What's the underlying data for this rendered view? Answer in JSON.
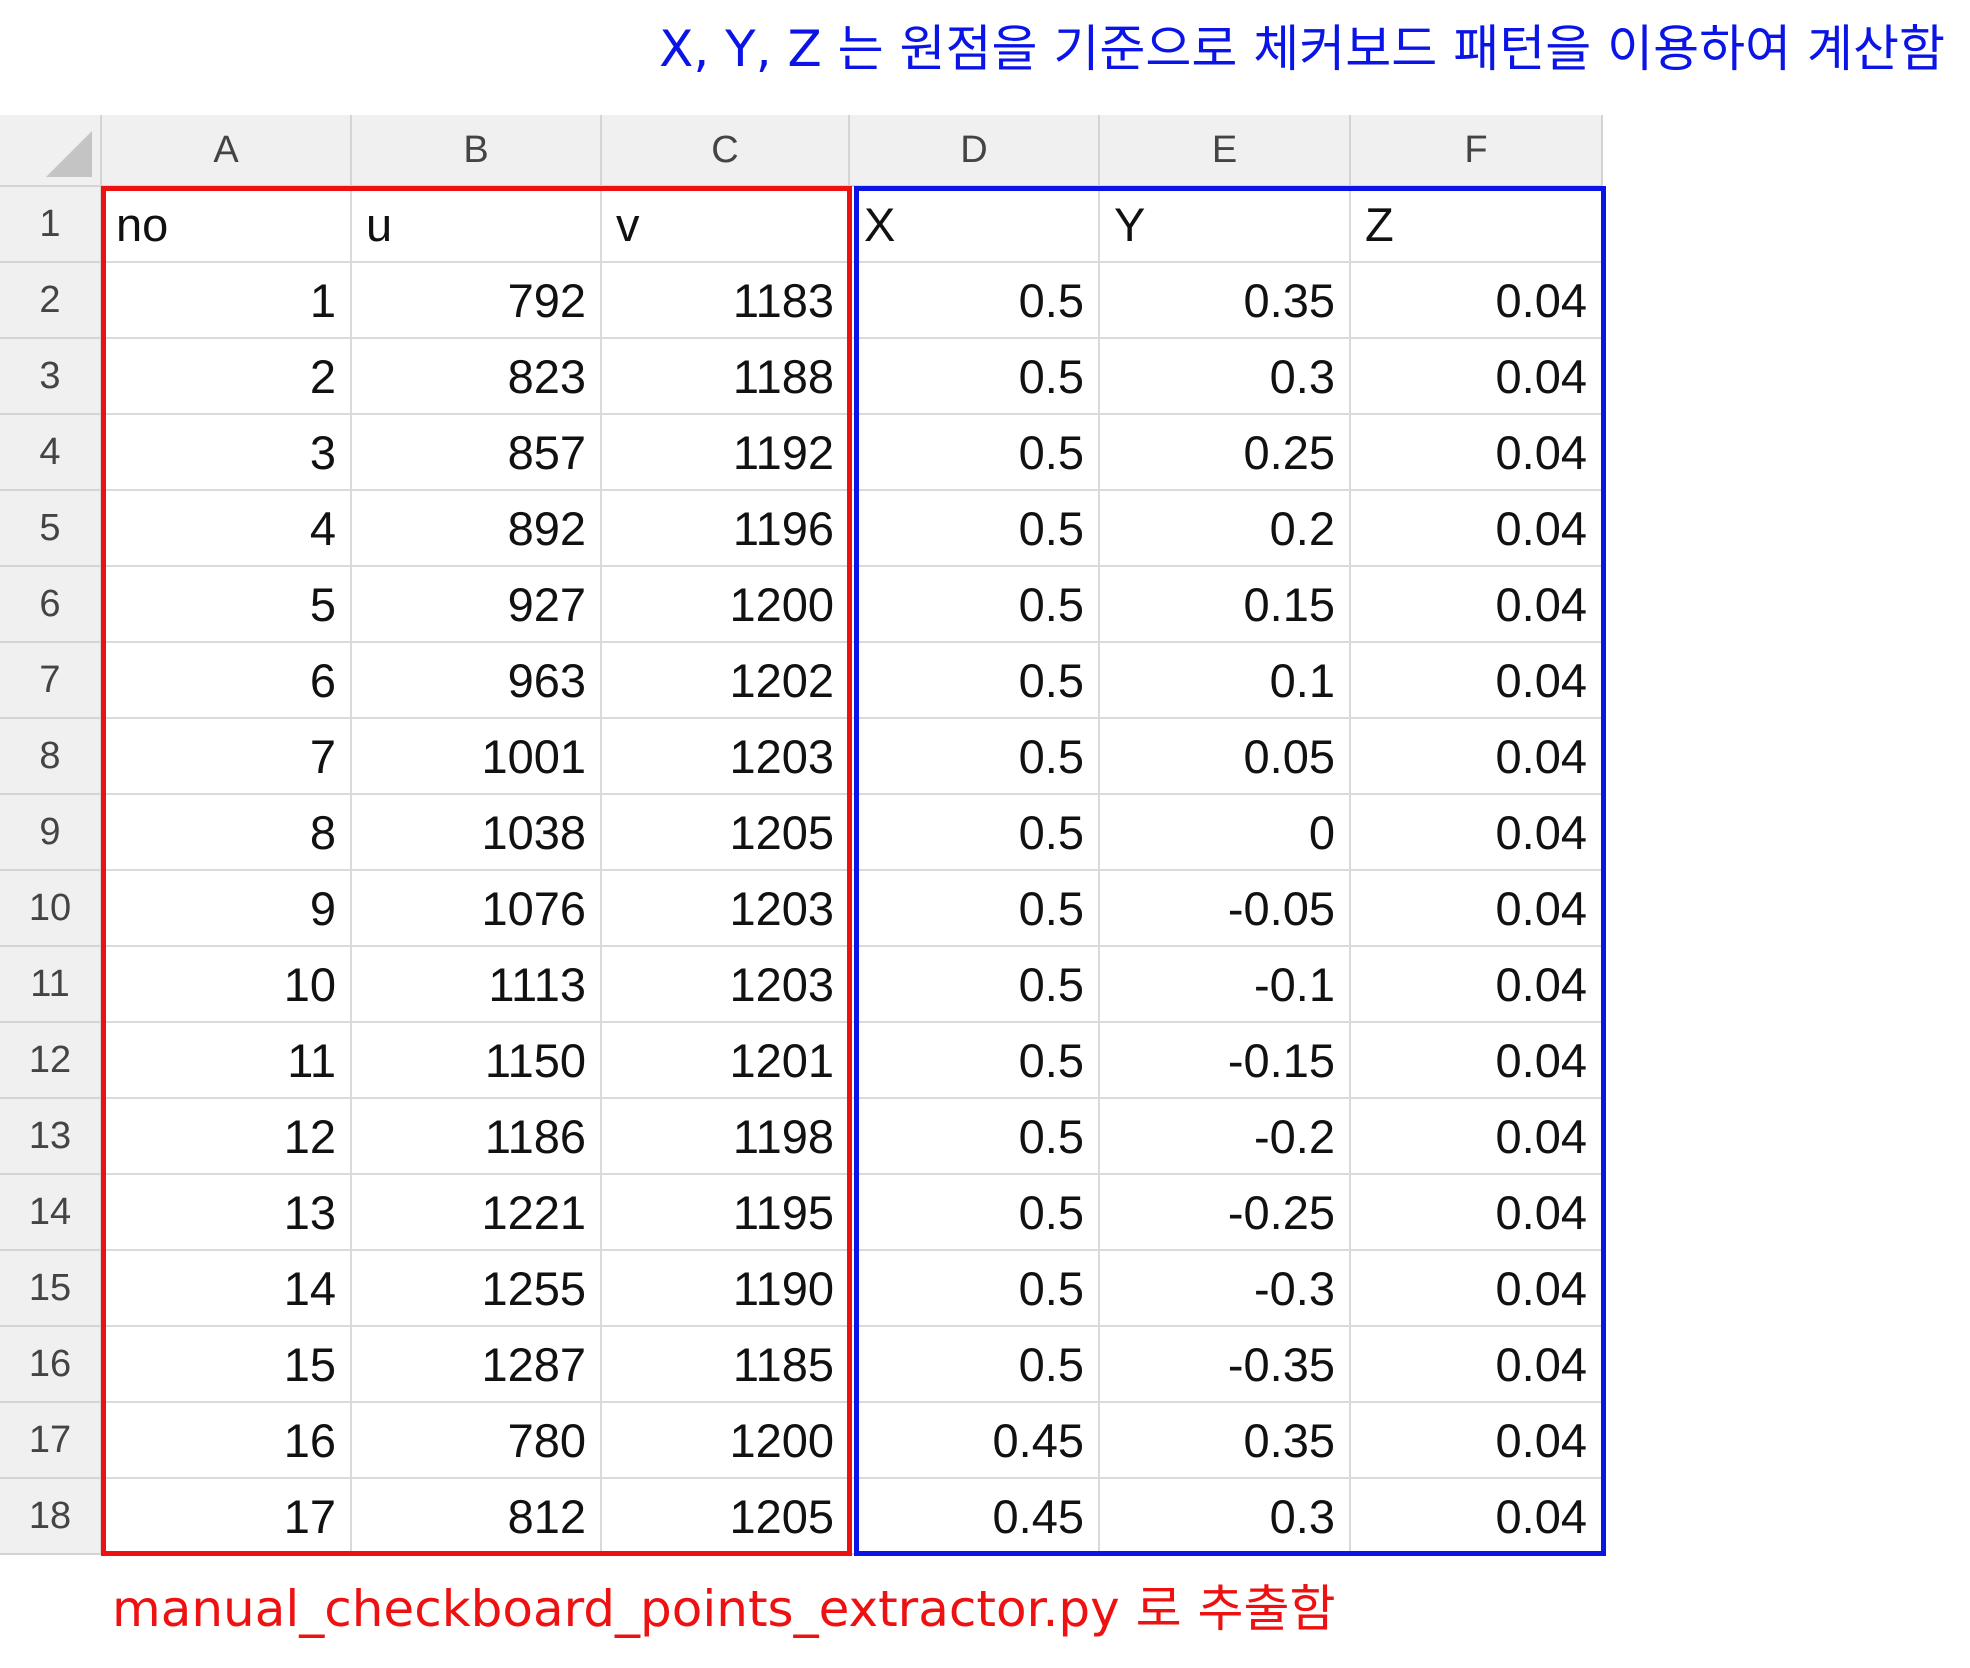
{
  "annotations": {
    "top_note": "X, Y, Z 는 원점을 기준으로 체커보드 패턴을 이용하여 계산함",
    "bottom_note": "manual_checkboard_points_extractor.py 로 추출함",
    "top_note_color": "#0a14e6",
    "bottom_note_color": "#ee1111"
  },
  "spreadsheet": {
    "column_letters": [
      "A",
      "B",
      "C",
      "D",
      "E",
      "F"
    ],
    "row_numbers": [
      "1",
      "2",
      "3",
      "4",
      "5",
      "6",
      "7",
      "8",
      "9",
      "10",
      "11",
      "12",
      "13",
      "14",
      "15",
      "16",
      "17",
      "18"
    ],
    "header_row": [
      "no",
      "u",
      "v",
      "X",
      "Y",
      "Z"
    ],
    "data_rows": [
      [
        "1",
        "792",
        "1183",
        "0.5",
        "0.35",
        "0.04"
      ],
      [
        "2",
        "823",
        "1188",
        "0.5",
        "0.3",
        "0.04"
      ],
      [
        "3",
        "857",
        "1192",
        "0.5",
        "0.25",
        "0.04"
      ],
      [
        "4",
        "892",
        "1196",
        "0.5",
        "0.2",
        "0.04"
      ],
      [
        "5",
        "927",
        "1200",
        "0.5",
        "0.15",
        "0.04"
      ],
      [
        "6",
        "963",
        "1202",
        "0.5",
        "0.1",
        "0.04"
      ],
      [
        "7",
        "1001",
        "1203",
        "0.5",
        "0.05",
        "0.04"
      ],
      [
        "8",
        "1038",
        "1205",
        "0.5",
        "0",
        "0.04"
      ],
      [
        "9",
        "1076",
        "1203",
        "0.5",
        "-0.05",
        "0.04"
      ],
      [
        "10",
        "1113",
        "1203",
        "0.5",
        "-0.1",
        "0.04"
      ],
      [
        "11",
        "1150",
        "1201",
        "0.5",
        "-0.15",
        "0.04"
      ],
      [
        "12",
        "1186",
        "1198",
        "0.5",
        "-0.2",
        "0.04"
      ],
      [
        "13",
        "1221",
        "1195",
        "0.5",
        "-0.25",
        "0.04"
      ],
      [
        "14",
        "1255",
        "1190",
        "0.5",
        "-0.3",
        "0.04"
      ],
      [
        "15",
        "1287",
        "1185",
        "0.5",
        "-0.35",
        "0.04"
      ],
      [
        "16",
        "780",
        "1200",
        "0.45",
        "0.35",
        "0.04"
      ],
      [
        "17",
        "812",
        "1205",
        "0.45",
        "0.3",
        "0.04"
      ]
    ]
  }
}
